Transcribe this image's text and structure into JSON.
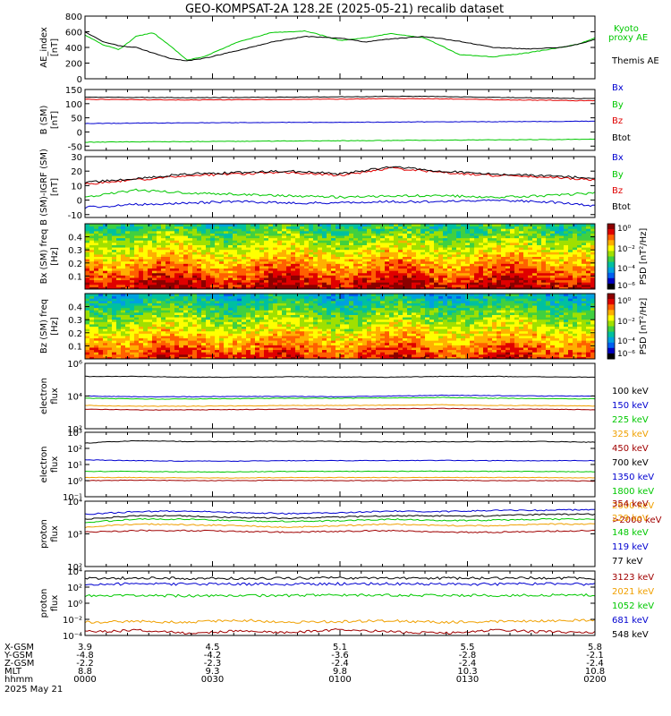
{
  "title": "GEO-KOMPSAT-2A 128.2E (2025-05-21) recalib dataset",
  "colors": {
    "black": "#000000",
    "red": "#e00000",
    "green": "#00c800",
    "blue": "#0000d0",
    "orange": "#f0a000",
    "darkred": "#a00000",
    "cyan": "#00a0e0"
  },
  "chart_data": [
    {
      "type": "line",
      "ylabel": "AE_index [nT]",
      "yticks": [
        "800",
        "600",
        "400",
        "200",
        "0"
      ],
      "ylim": [
        0,
        800
      ],
      "series": [
        {
          "name": "Kyoto proxy AE",
          "color": "green",
          "x": [
            0,
            4,
            8,
            12,
            16,
            20,
            24,
            28,
            36,
            44,
            52,
            60,
            66,
            72,
            80,
            88,
            96,
            104,
            112,
            116,
            120
          ],
          "y": [
            560,
            440,
            370,
            540,
            590,
            420,
            240,
            280,
            470,
            590,
            610,
            490,
            520,
            580,
            520,
            310,
            280,
            330,
            400,
            440,
            520
          ]
        },
        {
          "name": "Themis AE",
          "color": "black",
          "x": [
            0,
            4,
            8,
            12,
            16,
            20,
            24,
            28,
            36,
            44,
            52,
            60,
            66,
            72,
            80,
            88,
            96,
            104,
            112,
            116,
            120
          ],
          "y": [
            600,
            480,
            420,
            400,
            330,
            260,
            230,
            260,
            360,
            470,
            540,
            520,
            470,
            510,
            540,
            480,
            400,
            380,
            400,
            440,
            500
          ]
        }
      ],
      "legend": [
        {
          "label": "Kyoto proxy AE",
          "color": "green"
        },
        {
          "label": "Themis AE",
          "color": "black"
        }
      ]
    },
    {
      "type": "line",
      "ylabel": "B (SM) [nT]",
      "yticks": [
        "150",
        "100",
        "50",
        "0",
        "-50"
      ],
      "ylim": [
        -65,
        150
      ],
      "series": [
        {
          "name": "Bx",
          "color": "blue",
          "y": [
            30,
            31,
            32,
            33,
            34,
            34,
            35,
            36,
            36,
            37,
            38
          ]
        },
        {
          "name": "By",
          "color": "green",
          "y": [
            -36,
            -35,
            -34,
            -33,
            -32,
            -31,
            -30,
            -29,
            -28,
            -27,
            -26
          ]
        },
        {
          "name": "Bz",
          "color": "red",
          "y": [
            115,
            114,
            113,
            114,
            115,
            116,
            118,
            117,
            114,
            112,
            110
          ]
        },
        {
          "name": "Btot",
          "color": "black",
          "y": [
            123,
            122,
            121,
            122,
            123,
            124,
            126,
            125,
            122,
            120,
            118
          ]
        }
      ],
      "legend": [
        {
          "label": "Bx",
          "color": "blue"
        },
        {
          "label": "By",
          "color": "green"
        },
        {
          "label": "Bz",
          "color": "red"
        },
        {
          "label": "Btot",
          "color": "black"
        }
      ]
    },
    {
      "type": "line",
      "ylabel": "B (SM)-IGRF (SM) [nT]",
      "yticks": [
        "30",
        "20",
        "10",
        "0",
        "-10"
      ],
      "ylim": [
        -12,
        30
      ],
      "series": [
        {
          "name": "Bx",
          "color": "blue",
          "y": [
            -5,
            -3,
            -2,
            -1,
            -2,
            -2,
            -1,
            -1,
            0,
            -1,
            -4
          ]
        },
        {
          "name": "By",
          "color": "green",
          "y": [
            2,
            7,
            5,
            4,
            3,
            2,
            3,
            3,
            2,
            3,
            5
          ]
        },
        {
          "name": "Bz",
          "color": "red",
          "y": [
            11,
            14,
            17,
            18,
            19,
            17,
            22,
            19,
            17,
            16,
            14
          ]
        },
        {
          "name": "Btot",
          "color": "black",
          "y": [
            12,
            15,
            18,
            19,
            20,
            18,
            23,
            20,
            18,
            17,
            15
          ]
        }
      ],
      "legend": [
        {
          "label": "Bx",
          "color": "blue"
        },
        {
          "label": "By",
          "color": "green"
        },
        {
          "label": "Bz",
          "color": "red"
        },
        {
          "label": "Btot",
          "color": "black"
        }
      ]
    },
    {
      "type": "heatmap",
      "ylabel": "Bx (SM) freq [Hz]",
      "yticks": [
        "0.4",
        "0.3",
        "0.2",
        "0.1"
      ],
      "ylim": [
        0,
        0.5
      ],
      "colorbar_label": "PSD [nT²/Hz]",
      "colorbar_ticks": [
        "10⁰",
        "10⁻²",
        "10⁻⁴",
        "10⁻⁶"
      ]
    },
    {
      "type": "heatmap",
      "ylabel": "Bz (SM) freq [Hz]",
      "yticks": [
        "0.4",
        "0.3",
        "0.2",
        "0.1"
      ],
      "ylim": [
        0,
        0.5
      ],
      "colorbar_label": "PSD [nT²/Hz]",
      "colorbar_ticks": [
        "10⁰",
        "10⁻²",
        "10⁻⁴",
        "10⁻⁶"
      ]
    },
    {
      "type": "line",
      "ylabel": "electron flux",
      "log": true,
      "yticks": [
        "10⁶",
        "10⁴",
        "10²"
      ],
      "ylim_log": [
        1.5,
        6
      ],
      "series": [
        {
          "name": "100 keV",
          "color": "black",
          "y": [
            5.1,
            5.1,
            5.05,
            5.05,
            5.08,
            5.06,
            5.05,
            5.1,
            5.1,
            5.08,
            5.05
          ]
        },
        {
          "name": "150 keV",
          "color": "blue",
          "y": [
            3.75,
            3.7,
            3.7,
            3.72,
            3.72,
            3.7,
            3.75,
            3.8,
            3.78,
            3.75,
            3.75
          ]
        },
        {
          "name": "225 keV",
          "color": "green",
          "y": [
            3.6,
            3.55,
            3.55,
            3.57,
            3.6,
            3.6,
            3.62,
            3.65,
            3.6,
            3.58,
            3.55
          ]
        },
        {
          "name": "325 keV",
          "color": "orange",
          "y": [
            3.1,
            3.05,
            3.05,
            3.07,
            3.1,
            3.1,
            3.12,
            3.15,
            3.1,
            3.1,
            3.05
          ]
        },
        {
          "name": "450 keV",
          "color": "darkred",
          "y": [
            2.85,
            2.8,
            2.8,
            2.82,
            2.85,
            2.85,
            2.87,
            2.9,
            2.85,
            2.85,
            2.8
          ]
        }
      ],
      "legend": [
        {
          "label": "100 keV",
          "color": "black"
        },
        {
          "label": "150 keV",
          "color": "blue"
        },
        {
          "label": "225 keV",
          "color": "green"
        },
        {
          "label": "325 keV",
          "color": "orange"
        },
        {
          "label": "450 keV",
          "color": "darkred"
        }
      ]
    },
    {
      "type": "line",
      "ylabel": "electron flux",
      "log": true,
      "yticks": [
        "10³",
        "10²",
        "10¹",
        "10⁰",
        "10⁻¹"
      ],
      "ylim_log": [
        -1.2,
        3
      ],
      "series": [
        {
          "name": "700 keV",
          "color": "black",
          "y": [
            2.3,
            2.45,
            2.4,
            2.4,
            2.42,
            2.4,
            2.38,
            2.38,
            2.4,
            2.4,
            2.35
          ]
        },
        {
          "name": "1350 keV",
          "color": "blue",
          "y": [
            1.2,
            1.15,
            1.12,
            1.12,
            1.15,
            1.15,
            1.15,
            1.17,
            1.15,
            1.15,
            1.15
          ]
        },
        {
          "name": "1800 keV",
          "color": "green",
          "y": [
            0.45,
            0.45,
            0.42,
            0.42,
            0.45,
            0.45,
            0.45,
            0.47,
            0.45,
            0.45,
            0.42
          ]
        },
        {
          "name": "2600 keV",
          "color": "orange",
          "y": [
            0.05,
            0.05,
            0.03,
            0.03,
            0.05,
            0.05,
            0.05,
            0.06,
            0.05,
            0.05,
            0.03
          ]
        },
        {
          "name": ">2000 keV",
          "color": "darkred",
          "y": [
            -0.15,
            -0.12,
            -0.15,
            -0.15,
            -0.13,
            -0.15,
            -0.15,
            -0.12,
            -0.15,
            -0.15,
            -0.18
          ]
        }
      ],
      "legend": [
        {
          "label": "700 keV",
          "color": "black"
        },
        {
          "label": "1350 keV",
          "color": "blue"
        },
        {
          "label": "1800 keV",
          "color": "green"
        },
        {
          "label": "2600 keV",
          "color": "orange"
        },
        {
          "label": ">2000 keV",
          "color": "darkred"
        }
      ]
    },
    {
      "type": "line",
      "ylabel": "proton flux",
      "log": true,
      "yticks": [
        "10⁴",
        "10³",
        "10²"
      ],
      "ylim_log": [
        2,
        4
      ],
      "series": [
        {
          "name": "354 keV",
          "color": "darkred",
          "y": [
            3.05,
            3.1,
            3.1,
            3.08,
            3.05,
            3.08,
            3.1,
            3.05,
            3.05,
            3.08,
            3.1
          ]
        },
        {
          "name": "229 keV",
          "color": "orange",
          "y": [
            3.2,
            3.3,
            3.28,
            3.25,
            3.2,
            3.25,
            3.3,
            3.25,
            3.25,
            3.3,
            3.3
          ]
        },
        {
          "name": "148 keV",
          "color": "green",
          "y": [
            3.35,
            3.45,
            3.45,
            3.4,
            3.38,
            3.4,
            3.45,
            3.4,
            3.42,
            3.45,
            3.45
          ]
        },
        {
          "name": "119 keV",
          "color": "blue",
          "y": [
            3.6,
            3.68,
            3.7,
            3.65,
            3.62,
            3.65,
            3.7,
            3.68,
            3.72,
            3.72,
            3.75
          ]
        },
        {
          "name": "77 keV",
          "color": "black",
          "y": [
            3.45,
            3.55,
            3.55,
            3.5,
            3.48,
            3.52,
            3.55,
            3.55,
            3.55,
            3.6,
            3.6
          ]
        }
      ],
      "legend": [
        {
          "label": "354 keV",
          "color": "darkred"
        },
        {
          "label": "229 keV",
          "color": "orange"
        },
        {
          "label": "148 keV",
          "color": "green"
        },
        {
          "label": "119 keV",
          "color": "blue"
        },
        {
          "label": "77 keV",
          "color": "black"
        }
      ]
    },
    {
      "type": "line",
      "ylabel": "proton flux",
      "log": true,
      "yticks": [
        "10⁴",
        "10²",
        "10⁰",
        "10⁻²",
        "10⁻⁴"
      ],
      "ylim_log": [
        -4.8,
        4
      ],
      "series": [
        {
          "name": "3123 keV",
          "color": "darkred",
          "y": [
            -4.3,
            -4.1,
            -4.5,
            -4.2,
            -4.4,
            -4.0,
            -4.3,
            -4.5,
            -4.1,
            -4.3,
            -4.4
          ]
        },
        {
          "name": "2021 keV",
          "color": "orange",
          "y": [
            -3.0,
            -2.9,
            -3.0,
            -2.7,
            -3.0,
            -2.9,
            -2.8,
            -3.0,
            -2.9,
            -2.8,
            -2.7
          ]
        },
        {
          "name": "1052 keV",
          "color": "green",
          "y": [
            0.6,
            0.65,
            0.6,
            0.6,
            0.65,
            0.7,
            0.7,
            0.65,
            0.65,
            0.7,
            0.7
          ]
        },
        {
          "name": "681 keV",
          "color": "blue",
          "y": [
            2.2,
            2.25,
            2.2,
            2.2,
            2.2,
            2.25,
            2.25,
            2.2,
            2.2,
            2.25,
            2.2
          ]
        },
        {
          "name": "548 keV",
          "color": "black",
          "y": [
            3.0,
            3.05,
            3.0,
            3.0,
            3.02,
            3.05,
            3.05,
            3.0,
            3.0,
            3.05,
            3.0
          ]
        }
      ],
      "legend": [
        {
          "label": "3123 keV",
          "color": "darkred"
        },
        {
          "label": "2021 keV",
          "color": "orange"
        },
        {
          "label": "1052 keV",
          "color": "green"
        },
        {
          "label": "681 keV",
          "color": "blue"
        },
        {
          "label": "548 keV",
          "color": "black"
        }
      ]
    }
  ],
  "footer": {
    "row_labels": [
      "X-GSM",
      "Y-GSM",
      "Z-GSM",
      "MLT",
      "hhmm",
      "2025 May 21"
    ],
    "columns": [
      [
        "3.9",
        "-4.8",
        "-2.2",
        "8.8",
        "0000"
      ],
      [
        "4.5",
        "-4.2",
        "-2.3",
        "9.3",
        "0030"
      ],
      [
        "5.1",
        "-3.6",
        "-2.4",
        "9.8",
        "0100"
      ],
      [
        "5.5",
        "-2.8",
        "-2.4",
        "10.3",
        "0130"
      ],
      [
        "5.8",
        "-2.1",
        "-2.4",
        "10.8",
        "0200"
      ]
    ]
  }
}
